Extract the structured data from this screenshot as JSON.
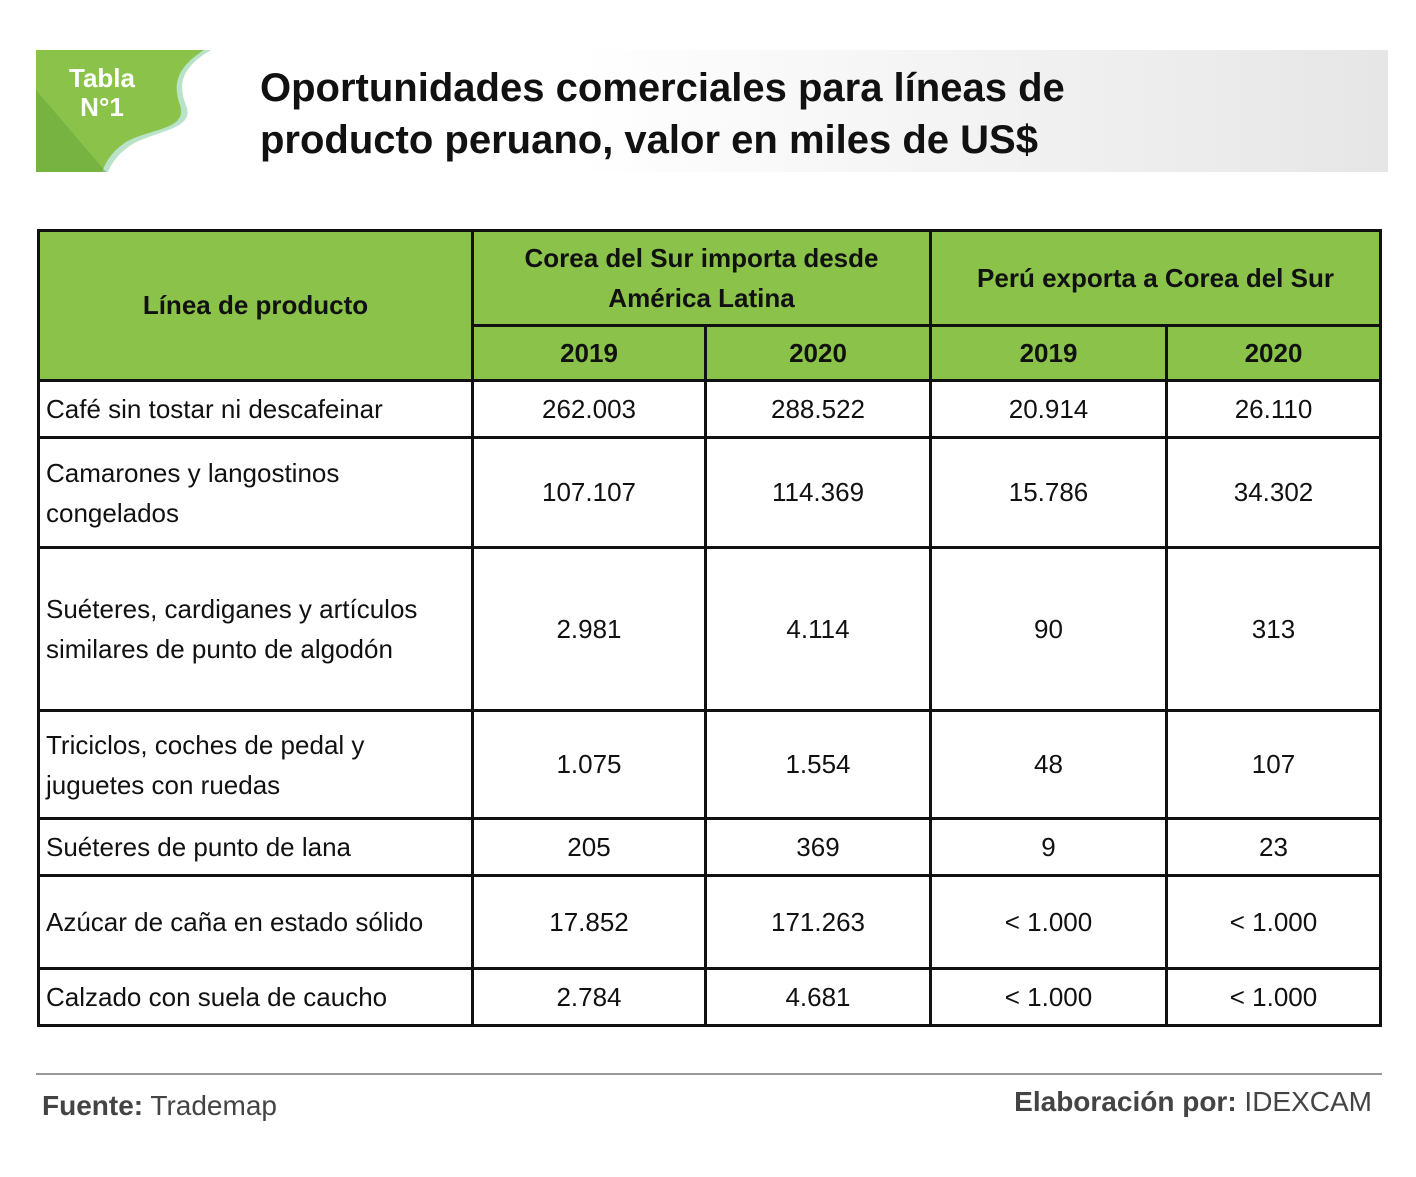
{
  "badge": {
    "line1": "Tabla",
    "line2": "N°1"
  },
  "title": {
    "line1": "Oportunidades comerciales para líneas de",
    "line2": "producto peruano, valor en miles de US$"
  },
  "table": {
    "col_product": "Línea de producto",
    "group1": "Corea del Sur importa desde América Latina",
    "group2": "Perú exporta a Corea del Sur",
    "years": [
      "2019",
      "2020",
      "2019",
      "2020"
    ],
    "rows": [
      {
        "label": "Café sin tostar ni descafeinar",
        "values": [
          "262.003",
          "288.522",
          "20.914",
          "26.110"
        ]
      },
      {
        "label": "Camarones y langostinos congelados",
        "values": [
          "107.107",
          "114.369",
          "15.786",
          "34.302"
        ]
      },
      {
        "label": "Suéteres, cardiganes y artículos similares de punto de algodón",
        "values": [
          "2.981",
          "4.114",
          "90",
          "313"
        ]
      },
      {
        "label": "Triciclos, coches de pedal y juguetes con ruedas",
        "values": [
          "1.075",
          "1.554",
          "48",
          "107"
        ]
      },
      {
        "label": "Suéteres de punto de lana",
        "values": [
          "205",
          "369",
          "9",
          "23"
        ]
      },
      {
        "label": "Azúcar de caña en estado sólido",
        "values": [
          "17.852",
          "171.263",
          "< 1.000",
          "< 1.000"
        ]
      },
      {
        "label": "Calzado con suela de caucho",
        "values": [
          "2.784",
          "4.681",
          "< 1.000",
          "< 1.000"
        ]
      }
    ]
  },
  "footer": {
    "source_label": "Fuente:",
    "source": "Trademap",
    "by_label": "Elaboración por:",
    "by": "IDEXCAM"
  },
  "colors": {
    "green": "#8bc34a",
    "dark_green": "#6aa83a"
  }
}
